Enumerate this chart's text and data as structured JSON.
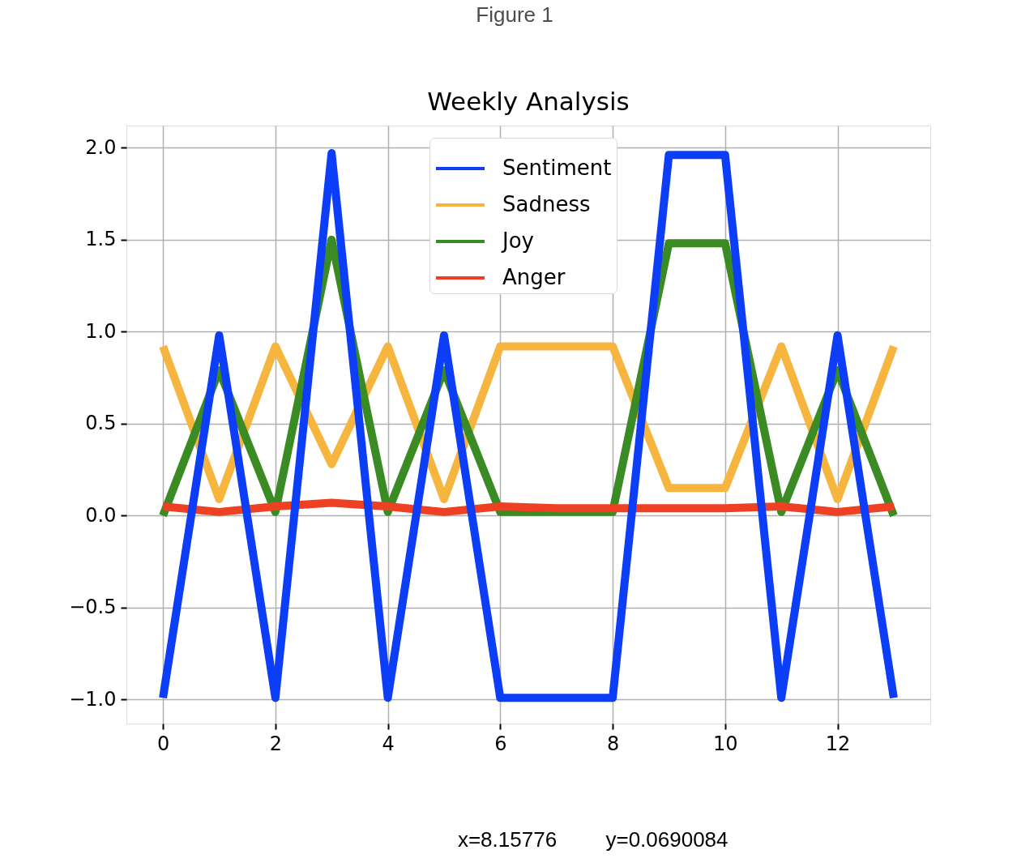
{
  "chart_data": {
    "type": "line",
    "title": "Weekly Analysis",
    "annotations": [
      "Figure 1",
      "x=8.15776",
      "y=0.0690084"
    ],
    "x": [
      0,
      1,
      2,
      3,
      4,
      5,
      6,
      7,
      8,
      9,
      10,
      11,
      12,
      13
    ],
    "series": [
      {
        "name": "Sentiment",
        "color": "#0c3ef7",
        "values": [
          -0.99,
          0.98,
          -0.99,
          1.97,
          -0.99,
          0.98,
          -0.99,
          -0.99,
          -0.99,
          1.96,
          1.96,
          -0.99,
          0.98,
          -0.99
        ]
      },
      {
        "name": "Sadness",
        "color": "#f6b53f",
        "values": [
          0.92,
          0.09,
          0.92,
          0.28,
          0.92,
          0.09,
          0.92,
          0.92,
          0.92,
          0.15,
          0.15,
          0.92,
          0.09,
          0.92
        ]
      },
      {
        "name": "Joy",
        "color": "#3b8b24",
        "values": [
          0.0,
          0.79,
          0.02,
          1.5,
          0.02,
          0.79,
          0.02,
          0.02,
          0.02,
          1.48,
          1.48,
          0.02,
          0.79,
          0.0
        ]
      },
      {
        "name": "Anger",
        "color": "#ee4123",
        "values": [
          0.05,
          0.02,
          0.05,
          0.07,
          0.05,
          0.02,
          0.05,
          0.04,
          0.04,
          0.04,
          0.04,
          0.05,
          0.02,
          0.05
        ]
      }
    ],
    "xlim": [
      -0.65,
      13.65
    ],
    "xticks": [
      0,
      2,
      4,
      6,
      8,
      10,
      12
    ],
    "ylim": [
      -1.13,
      2.12
    ],
    "yticks": [
      {
        "value": -1,
        "label": "−1.0"
      },
      {
        "value": -0.5,
        "label": "−0.5"
      },
      {
        "value": 0,
        "label": "0.0"
      },
      0.5,
      {
        "value": 1,
        "label": "1.0"
      },
      1.5,
      {
        "value": 2,
        "label": "2.0"
      }
    ],
    "grid": true,
    "legend": "top"
  }
}
